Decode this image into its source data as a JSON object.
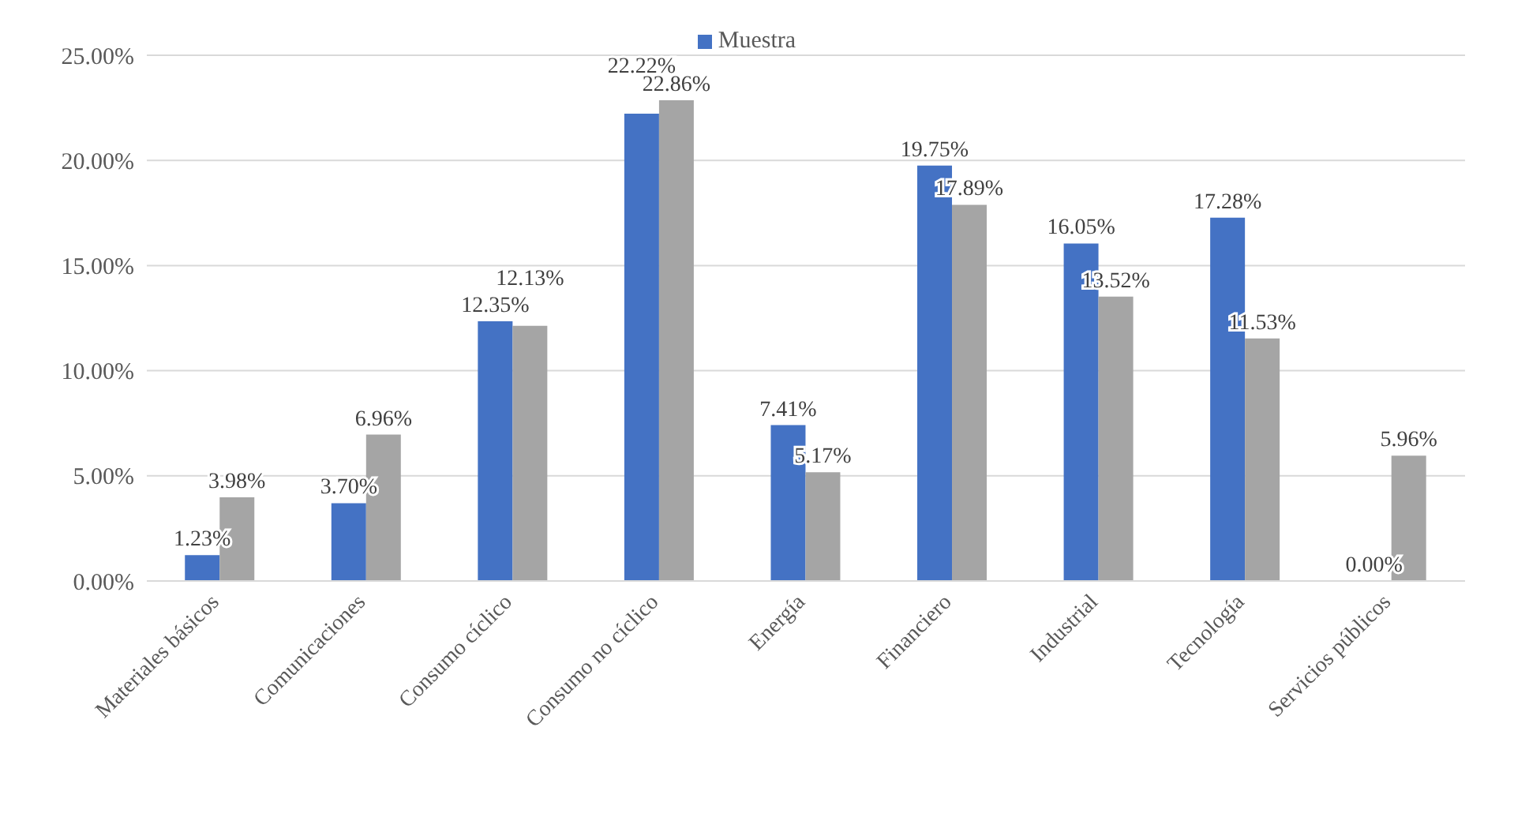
{
  "chart_data": {
    "type": "bar",
    "categories": [
      "Materiales básicos",
      "Comunicaciones",
      "Consumo cíclico",
      "Consumo no cíclico",
      "Energía",
      "Financiero",
      "Industrial",
      "Tecnología",
      "Servicios públicos"
    ],
    "series": [
      {
        "name": "Muestra",
        "color": "#4472c4",
        "values": [
          1.23,
          3.7,
          12.35,
          22.22,
          7.41,
          19.75,
          16.05,
          17.28,
          0.0
        ],
        "value_labels": [
          "1.23%",
          "3.70%",
          "12.35%",
          "22.22%",
          "7.41%",
          "19.75%",
          "16.05%",
          "17.28%",
          "0.00%"
        ]
      },
      {
        "color": "#a5a5a5",
        "values": [
          3.98,
          6.96,
          12.13,
          22.86,
          5.17,
          17.89,
          13.52,
          11.53,
          5.96
        ],
        "value_labels": [
          "3.98%",
          "6.96%",
          "12.13%",
          "22.86%",
          "5.17%",
          "17.89%",
          "13.52%",
          "11.53%",
          "5.96%"
        ]
      }
    ],
    "ylim": [
      0,
      25
    ],
    "yticks": [
      {
        "value": 0,
        "label": "0.00%"
      },
      {
        "value": 5,
        "label": "5.00%"
      },
      {
        "value": 10,
        "label": "10.00%"
      },
      {
        "value": 15,
        "label": "15.00%"
      },
      {
        "value": 20,
        "label": "20.00%"
      },
      {
        "value": 25,
        "label": "25.00%"
      }
    ],
    "grid": "y",
    "legend": "top"
  }
}
